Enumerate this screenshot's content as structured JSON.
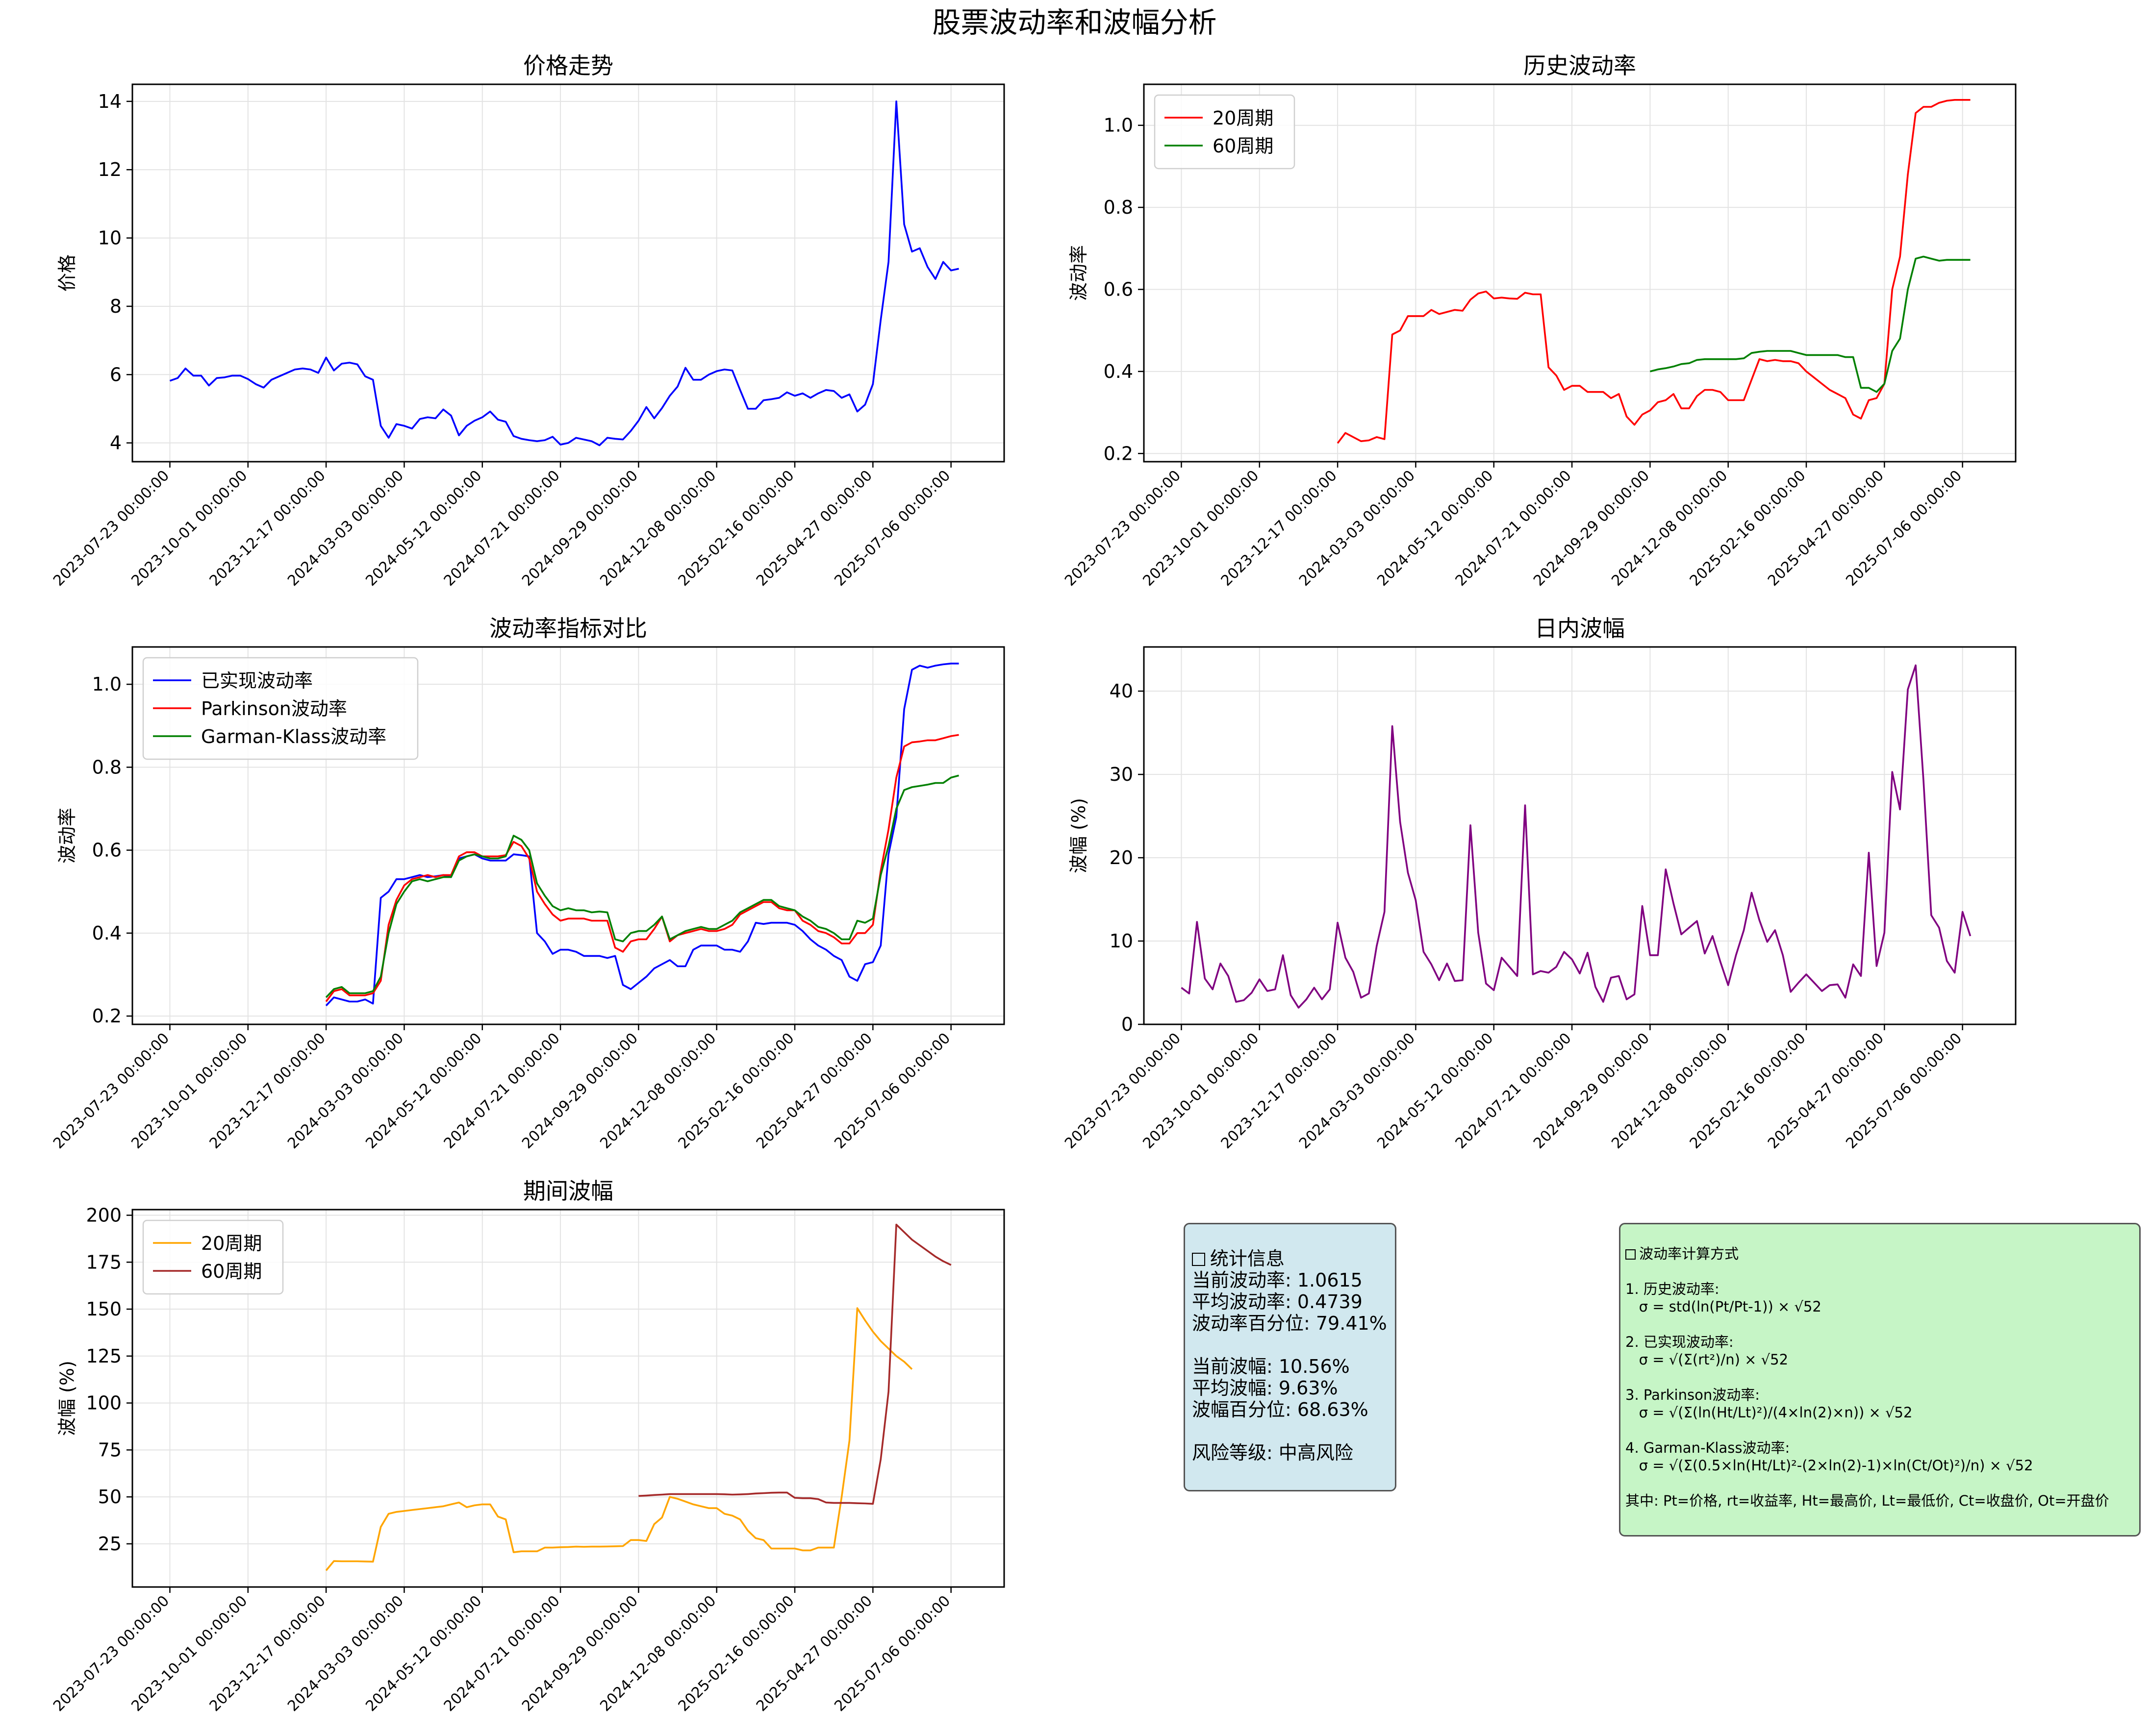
{
  "title": "股票波动率和波幅分析",
  "x_tick_labels": [
    "2023-07-23 00:00:00",
    "2023-10-01 00:00:00",
    "2023-12-17 00:00:00",
    "2024-03-03 00:00:00",
    "2024-05-12 00:00:00",
    "2024-07-21 00:00:00",
    "2024-09-29 00:00:00",
    "2024-12-08 00:00:00",
    "2025-02-16 00:00:00",
    "2025-04-27 00:00:00",
    "2025-07-06 00:00:00"
  ],
  "chart_data": [
    {
      "type": "line",
      "title": "价格走势",
      "xlabel": "",
      "ylabel": "价格",
      "x_range": [
        -4.8,
        106.8
      ],
      "ylim": [
        3.45,
        14.5
      ],
      "yticks": [
        4,
        6,
        8,
        10,
        12,
        14
      ],
      "legend": null,
      "grid": true,
      "series": [
        {
          "color": "#0000ff",
          "values": [
            5.82,
            5.9,
            6.18,
            5.97,
            5.97,
            5.68,
            5.9,
            5.92,
            5.97,
            5.97,
            5.87,
            5.72,
            5.62,
            5.85,
            5.95,
            6.05,
            6.15,
            6.18,
            6.15,
            6.05,
            6.5,
            6.12,
            6.32,
            6.35,
            6.3,
            5.95,
            5.85,
            4.5,
            4.15,
            4.55,
            4.5,
            4.42,
            4.7,
            4.75,
            4.72,
            4.98,
            4.8,
            4.22,
            4.5,
            4.65,
            4.75,
            4.92,
            4.68,
            4.62,
            4.2,
            4.12,
            4.08,
            4.05,
            4.08,
            4.18,
            3.95,
            4.0,
            4.15,
            4.1,
            4.05,
            3.93,
            4.15,
            4.12,
            4.1,
            4.35,
            4.65,
            5.05,
            4.72,
            5.02,
            5.38,
            5.65,
            6.2,
            5.85,
            5.85,
            6.0,
            6.1,
            6.15,
            6.12,
            5.55,
            5.0,
            5.0,
            5.25,
            5.28,
            5.32,
            5.48,
            5.38,
            5.45,
            5.32,
            5.45,
            5.55,
            5.52,
            5.32,
            5.42,
            4.92,
            5.12,
            5.72,
            7.6,
            9.3,
            14.0,
            10.4,
            9.6,
            9.7,
            9.15,
            8.8,
            9.3,
            9.05,
            9.1
          ]
        }
      ]
    },
    {
      "type": "line",
      "title": "历史波动率",
      "xlabel": "",
      "ylabel": "波动率",
      "x_range": [
        -4.8,
        106.8
      ],
      "ylim": [
        0.18,
        1.1
      ],
      "yticks": [
        0.2,
        0.4,
        0.6,
        0.8,
        1.0
      ],
      "legend": "upper left",
      "grid": true,
      "series": [
        {
          "name": "20周期",
          "color": "#ff0000",
          "start": 20,
          "values": [
            0.225,
            0.25,
            0.24,
            0.23,
            0.232,
            0.24,
            0.235,
            0.49,
            0.5,
            0.535,
            0.535,
            0.535,
            0.55,
            0.54,
            0.545,
            0.55,
            0.548,
            0.575,
            0.59,
            0.595,
            0.578,
            0.58,
            0.578,
            0.577,
            0.592,
            0.588,
            0.588,
            0.41,
            0.39,
            0.355,
            0.365,
            0.365,
            0.35,
            0.35,
            0.35,
            0.335,
            0.345,
            0.29,
            0.27,
            0.295,
            0.305,
            0.325,
            0.33,
            0.345,
            0.31,
            0.31,
            0.34,
            0.355,
            0.355,
            0.35,
            0.33,
            0.33,
            0.33,
            0.38,
            0.43,
            0.425,
            0.428,
            0.425,
            0.425,
            0.42,
            0.4,
            0.385,
            0.37,
            0.355,
            0.345,
            0.335,
            0.295,
            0.285,
            0.33,
            0.335,
            0.37,
            0.6,
            0.68,
            0.88,
            1.03,
            1.045,
            1.045,
            1.055,
            1.06,
            1.062,
            1.062,
            1.062
          ]
        },
        {
          "name": "60周期",
          "color": "#008000",
          "start": 60,
          "values": [
            0.4,
            0.405,
            0.408,
            0.412,
            0.418,
            0.42,
            0.428,
            0.43,
            0.43,
            0.43,
            0.43,
            0.43,
            0.432,
            0.445,
            0.448,
            0.45,
            0.45,
            0.45,
            0.45,
            0.445,
            0.44,
            0.44,
            0.44,
            0.44,
            0.44,
            0.435,
            0.435,
            0.36,
            0.36,
            0.35,
            0.37,
            0.45,
            0.48,
            0.6,
            0.675,
            0.68,
            0.675,
            0.67,
            0.672,
            0.672,
            0.672,
            0.672
          ]
        }
      ]
    },
    {
      "type": "line",
      "title": "波动率指标对比",
      "xlabel": "",
      "ylabel": "波动率",
      "x_range": [
        -4.8,
        106.8
      ],
      "ylim": [
        0.18,
        1.09
      ],
      "yticks": [
        0.2,
        0.4,
        0.6,
        0.8,
        1.0
      ],
      "legend": "upper left",
      "grid": true,
      "series": [
        {
          "name": "已实现波动率",
          "color": "#0000ff",
          "start": 20,
          "values": [
            0.225,
            0.245,
            0.24,
            0.235,
            0.235,
            0.24,
            0.23,
            0.485,
            0.5,
            0.53,
            0.53,
            0.535,
            0.54,
            0.535,
            0.537,
            0.54,
            0.535,
            0.58,
            0.585,
            0.59,
            0.58,
            0.575,
            0.575,
            0.575,
            0.59,
            0.588,
            0.585,
            0.4,
            0.38,
            0.35,
            0.36,
            0.36,
            0.355,
            0.345,
            0.345,
            0.345,
            0.34,
            0.345,
            0.275,
            0.265,
            0.28,
            0.295,
            0.315,
            0.325,
            0.335,
            0.32,
            0.32,
            0.36,
            0.37,
            0.37,
            0.37,
            0.36,
            0.36,
            0.355,
            0.38,
            0.425,
            0.422,
            0.425,
            0.425,
            0.425,
            0.42,
            0.405,
            0.385,
            0.37,
            0.36,
            0.345,
            0.335,
            0.295,
            0.285,
            0.325,
            0.33,
            0.37,
            0.59,
            0.68,
            0.94,
            1.035,
            1.045,
            1.04,
            1.045,
            1.048,
            1.05,
            1.05
          ]
        },
        {
          "name": "Parkinson波动率",
          "color": "#ff0000",
          "start": 20,
          "values": [
            0.235,
            0.26,
            0.265,
            0.25,
            0.25,
            0.25,
            0.255,
            0.285,
            0.42,
            0.48,
            0.515,
            0.53,
            0.535,
            0.54,
            0.535,
            0.54,
            0.54,
            0.585,
            0.595,
            0.595,
            0.585,
            0.585,
            0.585,
            0.588,
            0.62,
            0.61,
            0.58,
            0.5,
            0.47,
            0.445,
            0.43,
            0.435,
            0.435,
            0.435,
            0.43,
            0.43,
            0.43,
            0.365,
            0.355,
            0.38,
            0.385,
            0.385,
            0.41,
            0.44,
            0.38,
            0.395,
            0.4,
            0.405,
            0.41,
            0.405,
            0.405,
            0.41,
            0.42,
            0.445,
            0.455,
            0.465,
            0.475,
            0.475,
            0.46,
            0.455,
            0.455,
            0.43,
            0.42,
            0.405,
            0.4,
            0.39,
            0.375,
            0.375,
            0.4,
            0.4,
            0.42,
            0.55,
            0.65,
            0.775,
            0.85,
            0.86,
            0.862,
            0.865,
            0.865,
            0.87,
            0.875,
            0.878
          ]
        },
        {
          "name": "Garman-Klass波动率",
          "color": "#008000",
          "start": 20,
          "values": [
            0.245,
            0.265,
            0.27,
            0.255,
            0.255,
            0.255,
            0.26,
            0.295,
            0.4,
            0.47,
            0.5,
            0.525,
            0.53,
            0.525,
            0.53,
            0.535,
            0.535,
            0.575,
            0.585,
            0.59,
            0.585,
            0.58,
            0.58,
            0.585,
            0.635,
            0.625,
            0.6,
            0.52,
            0.49,
            0.465,
            0.455,
            0.46,
            0.455,
            0.455,
            0.45,
            0.452,
            0.45,
            0.385,
            0.38,
            0.4,
            0.405,
            0.405,
            0.42,
            0.44,
            0.385,
            0.395,
            0.405,
            0.41,
            0.415,
            0.41,
            0.41,
            0.42,
            0.43,
            0.45,
            0.46,
            0.47,
            0.48,
            0.48,
            0.465,
            0.46,
            0.455,
            0.44,
            0.43,
            0.415,
            0.41,
            0.4,
            0.385,
            0.385,
            0.43,
            0.425,
            0.435,
            0.54,
            0.61,
            0.7,
            0.745,
            0.752,
            0.755,
            0.758,
            0.762,
            0.762,
            0.775,
            0.78
          ]
        }
      ]
    },
    {
      "type": "line",
      "title": "日内波幅",
      "xlabel": "",
      "ylabel": "波幅 (%)",
      "x_range": [
        -4.8,
        106.8
      ],
      "ylim": [
        0,
        45.3
      ],
      "yticks": [
        0,
        10,
        20,
        30,
        40
      ],
      "legend": null,
      "grid": true,
      "series": [
        {
          "color": "#800080",
          "values": [
            4.4,
            3.7,
            12.3,
            5.5,
            4.2,
            7.3,
            5.8,
            2.7,
            2.9,
            3.8,
            5.4,
            4.0,
            4.2,
            8.3,
            3.5,
            2.0,
            3.0,
            4.4,
            3.0,
            4.2,
            12.2,
            8.0,
            6.3,
            3.2,
            3.7,
            9.4,
            13.5,
            35.8,
            24.3,
            18.2,
            14.9,
            8.7,
            7.2,
            5.3,
            7.3,
            5.2,
            5.3,
            23.9,
            11.0,
            4.9,
            4.1,
            8.0,
            6.9,
            5.8,
            26.3,
            6.0,
            6.4,
            6.2,
            6.9,
            8.7,
            7.8,
            6.1,
            8.6,
            4.5,
            2.7,
            5.6,
            5.8,
            3.0,
            3.6,
            14.2,
            8.3,
            8.3,
            18.6,
            14.5,
            10.8,
            11.6,
            12.4,
            8.5,
            10.6,
            7.5,
            4.7,
            8.3,
            11.3,
            15.8,
            12.5,
            9.9,
            11.3,
            8.3,
            3.9,
            5.0,
            6.0,
            5.0,
            4.0,
            4.7,
            4.8,
            3.2,
            7.2,
            5.8,
            20.6,
            7.0,
            11.0,
            30.3,
            25.8,
            40.2,
            43.1,
            29.3,
            13.1,
            11.6,
            7.6,
            6.2,
            13.5,
            10.6
          ]
        }
      ]
    },
    {
      "type": "line",
      "title": "期间波幅",
      "xlabel": "",
      "ylabel": "波幅 (%)",
      "x_range": [
        -4.8,
        106.8
      ],
      "ylim": [
        2,
        203
      ],
      "yticks": [
        25,
        50,
        75,
        100,
        125,
        150,
        175,
        200
      ],
      "legend": "upper left",
      "grid": true,
      "series": [
        {
          "name": "20周期",
          "color": "#ffa500",
          "start": 20,
          "values": [
            10.8,
            15.8,
            15.7,
            15.7,
            15.7,
            15.6,
            15.5,
            34,
            41,
            42,
            42.5,
            43,
            43.5,
            44,
            44.5,
            45,
            46,
            47,
            44.5,
            45.5,
            46,
            46,
            39.5,
            38,
            20.5,
            21,
            21,
            21,
            23,
            23,
            23.2,
            23.3,
            23.5,
            23.4,
            23.5,
            23.5,
            23.6,
            23.7,
            23.8,
            27,
            27,
            26.5,
            35.5,
            39,
            50,
            49,
            47.5,
            46,
            45,
            44,
            44,
            41,
            40,
            38,
            32,
            28,
            27,
            22.5,
            22.5,
            22.5,
            22.5,
            21.5,
            21.5,
            23,
            23,
            23,
            50,
            80,
            150.5,
            144,
            138,
            133,
            129,
            125,
            122,
            118
          ]
        },
        {
          "name": "60周期",
          "color": "#a52a2a",
          "start": 60,
          "values": [
            50.5,
            50.7,
            51,
            51.2,
            51.5,
            51.5,
            51.5,
            51.5,
            51.5,
            51.5,
            51.5,
            51.4,
            51.2,
            51.3,
            51.5,
            51.8,
            52,
            52.2,
            52.3,
            52.3,
            49.5,
            49.3,
            49.3,
            48.8,
            47,
            46.8,
            46.8,
            46.8,
            46.6,
            46.5,
            46.3,
            70,
            106,
            195,
            191,
            187,
            184,
            181,
            178,
            175.5,
            173.5
          ]
        }
      ]
    }
  ],
  "stats": {
    "header": "统计信息",
    "current_vol": "当前波动率: 1.0615",
    "avg_vol": "平均波动率: 0.4739",
    "vol_pct": "波动率百分位: 79.41%",
    "current_range": "当前波幅: 10.56%",
    "avg_range": "平均波幅: 9.63%",
    "range_pct": "波幅百分位: 68.63%",
    "risk": "风险等级: 中高风险"
  },
  "formulas": {
    "header": "波动率计算方式",
    "h1": "1. 历史波动率:",
    "f1": "   σ = std(ln(Pt/Pt-1)) × √52",
    "h2": "2. 已实现波动率:",
    "f2": "   σ = √(Σ(rt²)/n) × √52",
    "h3": "3. Parkinson波动率:",
    "f3": "   σ = √(Σ(ln(Ht/Lt)²)/(4×ln(2)×n)) × √52",
    "h4": "4. Garman-Klass波动率:",
    "f4": "   σ = √(Σ(0.5×ln(Ht/Lt)²-(2×ln(2)-1)×ln(Ct/Ot)²)/n) × √52",
    "note": "其中: Pt=价格, rt=收益率, Ht=最高价, Lt=最低价, Ct=收盘价, Ot=开盘价"
  }
}
